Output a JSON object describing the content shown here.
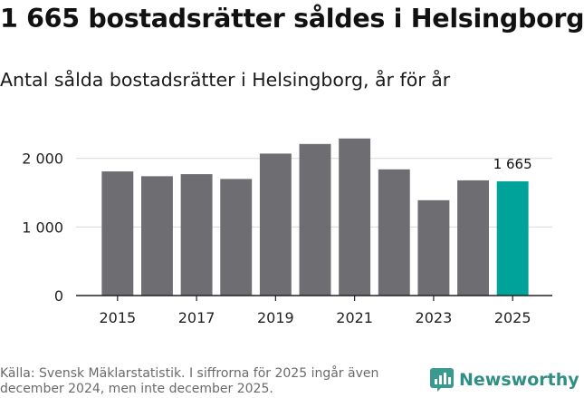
{
  "title": "1 665 bostadsrätter såldes i Helsingborg",
  "subtitle": "Antal sålda bostadsrätter i Helsingborg, år för år",
  "source": "Källa: Svensk Mäklarstatistik. I siffrorna för 2025 ingår även december 2024, men inte december 2025.",
  "brand": {
    "name": "Newsworthy",
    "icon": "newsworthy-logo-icon"
  },
  "colors": {
    "bar": "#6e6d72",
    "highlight": "#00a39a",
    "grid": "#d9d9d9",
    "axis": "#222222"
  },
  "chart_data": {
    "type": "bar",
    "title": "1 665 bostadsrätter såldes i Helsingborg",
    "subtitle": "Antal sålda bostadsrätter i Helsingborg, år för år",
    "categories": [
      "2015",
      "2016",
      "2017",
      "2018",
      "2019",
      "2020",
      "2021",
      "2022",
      "2023",
      "2024",
      "2025"
    ],
    "values": [
      1810,
      1740,
      1770,
      1700,
      2070,
      2210,
      2290,
      1840,
      1390,
      1680,
      1665
    ],
    "highlight_index": 10,
    "highlight_label": "1 665",
    "x_tick_labels": [
      "2015",
      "2017",
      "2019",
      "2021",
      "2023",
      "2025"
    ],
    "y_ticks": [
      {
        "value": 0,
        "label": "0"
      },
      {
        "value": 1000,
        "label": "1 000"
      },
      {
        "value": 2000,
        "label": "2 000"
      }
    ],
    "ylim": [
      0,
      2300
    ],
    "xlabel": "",
    "ylabel": "",
    "grid": true
  }
}
